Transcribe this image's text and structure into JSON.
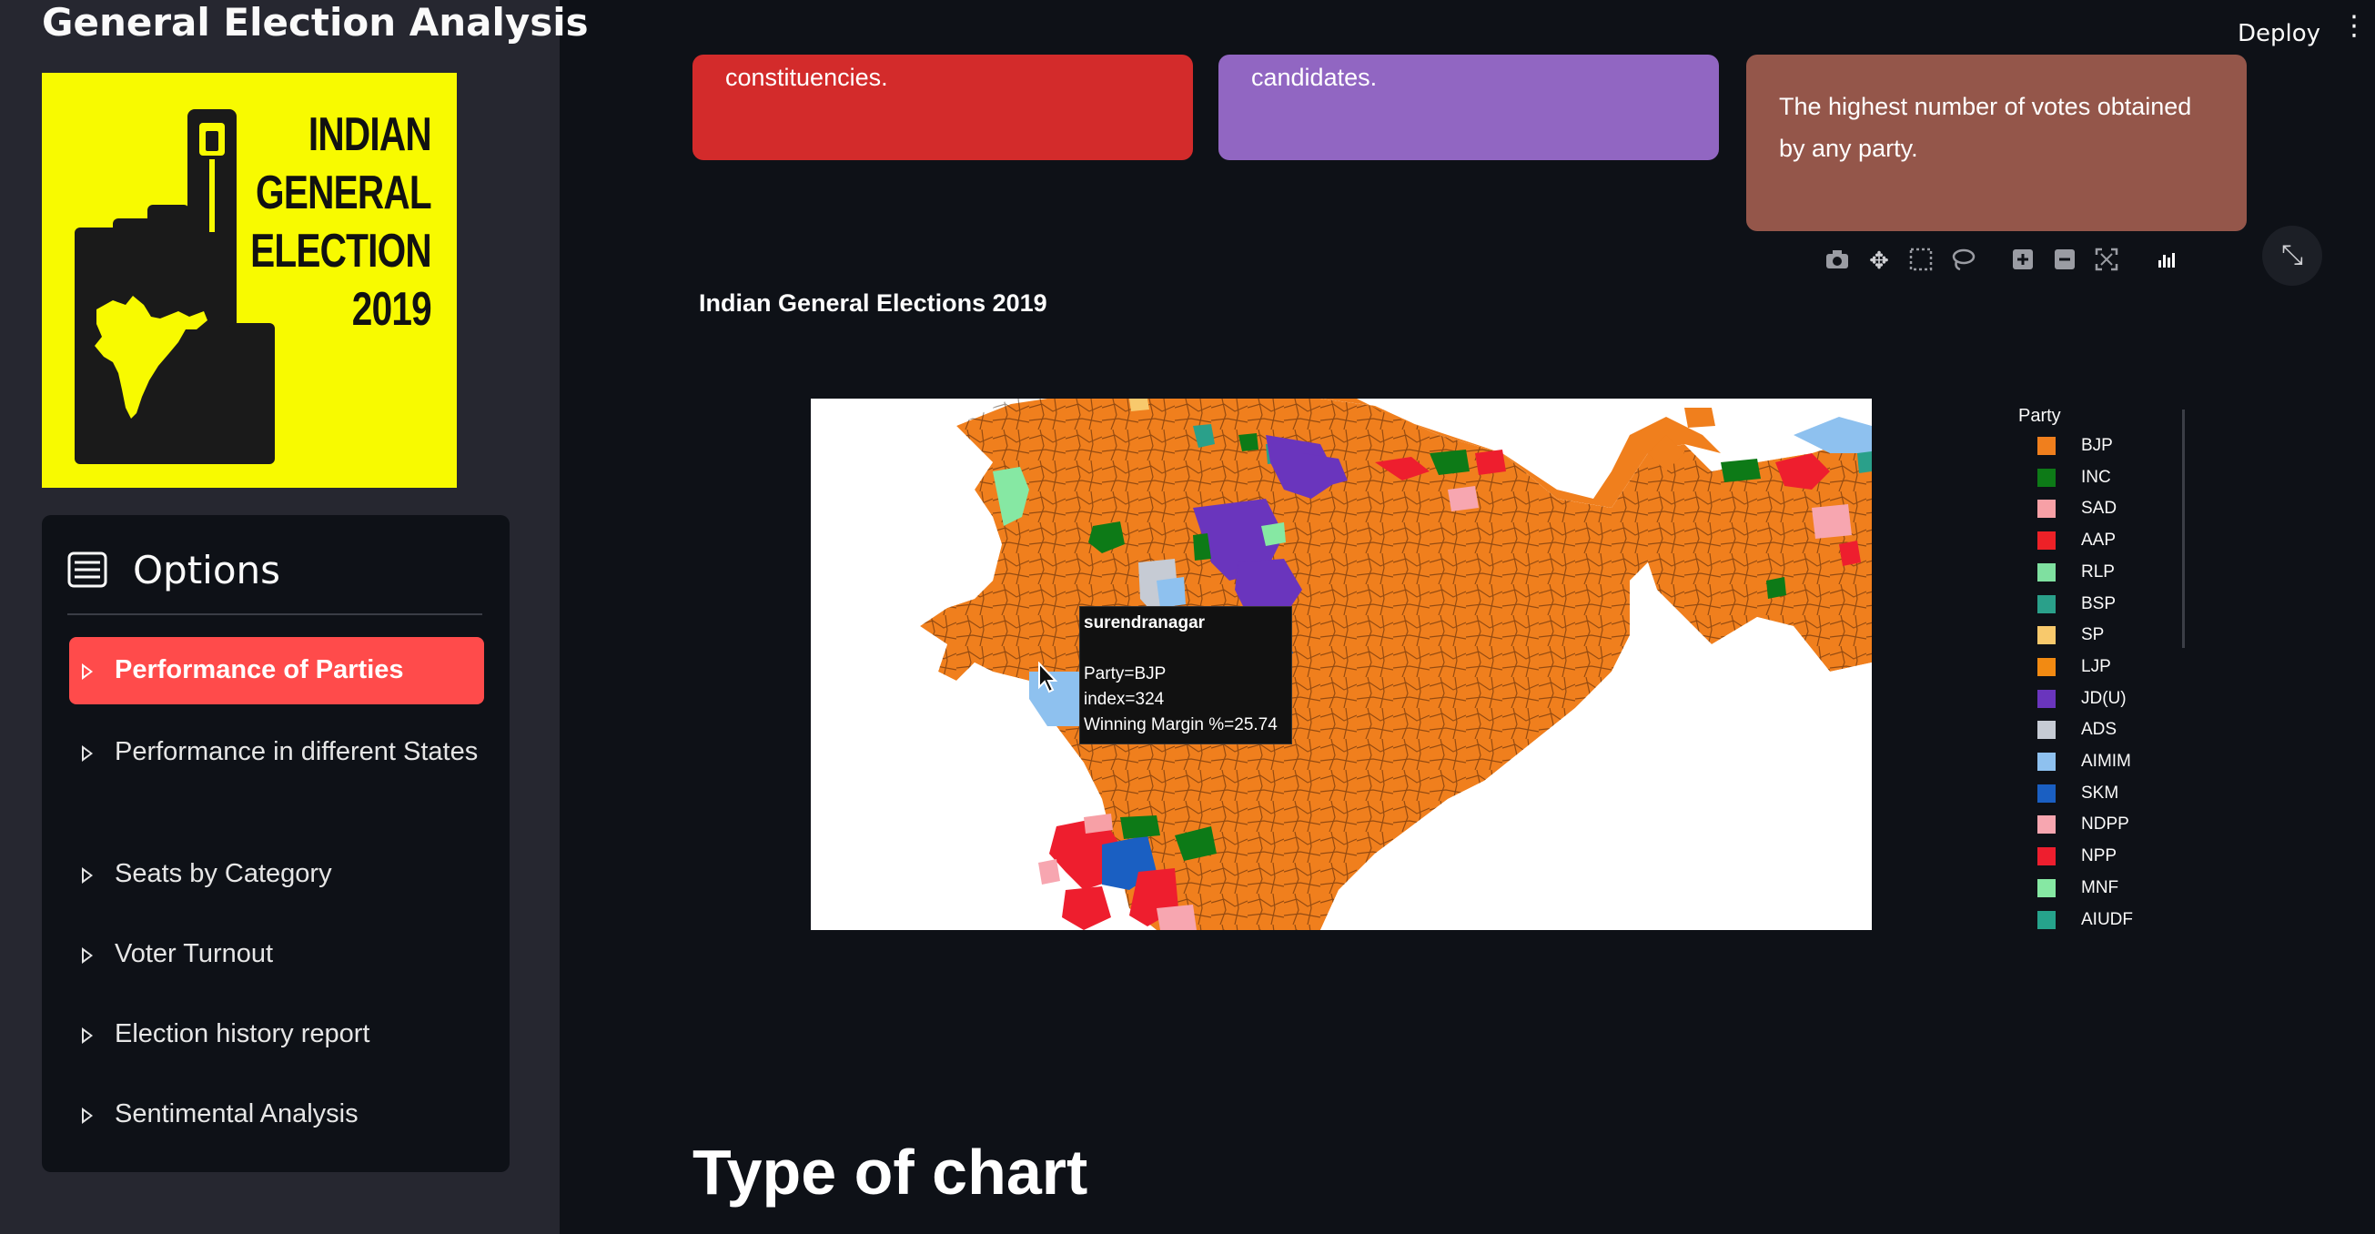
{
  "sidebar": {
    "title": "General Election Analysis",
    "logo_text": [
      "INDIAN",
      "GENERAL",
      "ELECTION",
      "2019"
    ],
    "options_label": "Options",
    "items": [
      {
        "label": "Performance of Parties",
        "active": true
      },
      {
        "label": "Performance in different States",
        "active": false
      },
      {
        "label": "Seats by Category",
        "active": false
      },
      {
        "label": "Voter Turnout",
        "active": false
      },
      {
        "label": "Election history report",
        "active": false
      },
      {
        "label": "Sentimental Analysis",
        "active": false
      }
    ]
  },
  "header": {
    "deploy_label": "Deploy"
  },
  "cards": [
    {
      "text": "constituencies.",
      "color": "#d32b2b"
    },
    {
      "text": "candidates.",
      "color": "#9166c2"
    },
    {
      "text_lines": [
        "The highest number of votes obtained",
        "by any party."
      ],
      "color": "#94564a"
    }
  ],
  "toolbar": [
    "camera-icon",
    "pan-icon",
    "box-select-icon",
    "lasso-icon",
    "zoom-in-icon",
    "zoom-out-icon",
    "autoscale-icon",
    "plotly-logo-icon"
  ],
  "chart": {
    "title": "Indian General Elections 2019",
    "legend_title": "Party",
    "legend": [
      {
        "party": "BJP",
        "color": "#f07f1d"
      },
      {
        "party": "INC",
        "color": "#0d7a17"
      },
      {
        "party": "SAD",
        "color": "#f7a0a6"
      },
      {
        "party": "AAP",
        "color": "#ed2127"
      },
      {
        "party": "RLP",
        "color": "#7fe0a0"
      },
      {
        "party": "BSP",
        "color": "#2aa08a"
      },
      {
        "party": "SP",
        "color": "#f8c96c"
      },
      {
        "party": "LJP",
        "color": "#f28a12"
      },
      {
        "party": "JD(U)",
        "color": "#6a35bd"
      },
      {
        "party": "ADS",
        "color": "#c6cbd4"
      },
      {
        "party": "AIMIM",
        "color": "#8ec1ef"
      },
      {
        "party": "SKM",
        "color": "#1a5fc2"
      },
      {
        "party": "NDPP",
        "color": "#f7a6b0"
      },
      {
        "party": "NPP",
        "color": "#ee1e2e"
      },
      {
        "party": "MNF",
        "color": "#86e8a3"
      },
      {
        "party": "AIUDF",
        "color": "#26a38c"
      }
    ],
    "tooltip": {
      "name": "surendranagar",
      "party": "Party=BJP",
      "index": "index=324",
      "margin": "Winning Margin %=25.74"
    }
  },
  "section_heading": "Type of chart"
}
